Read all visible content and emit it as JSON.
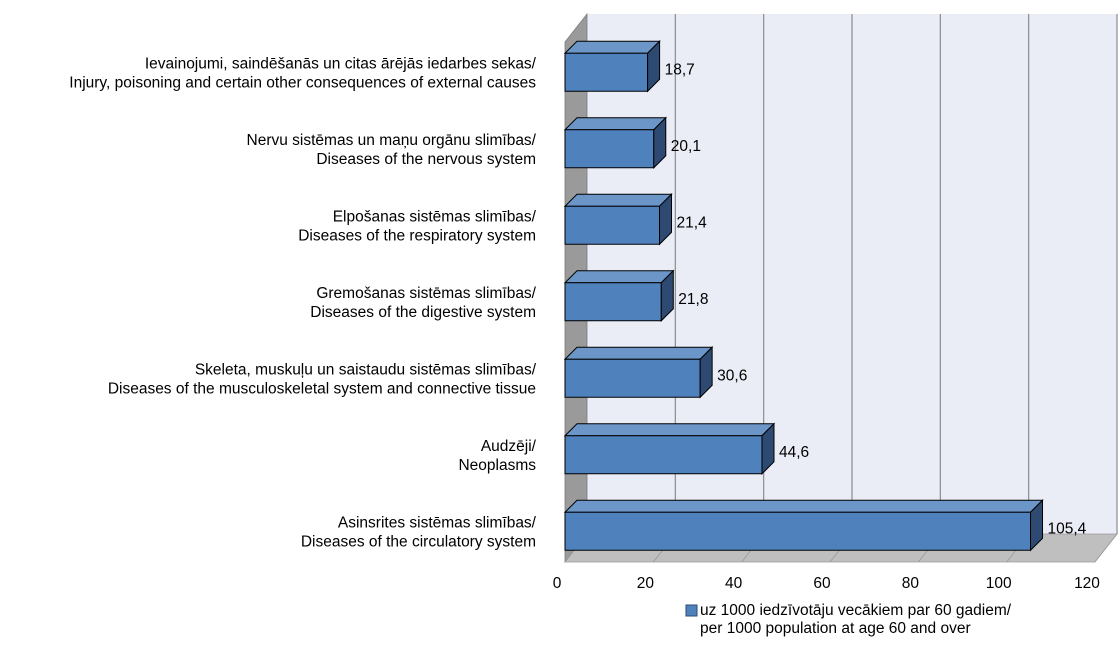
{
  "chart_data": {
    "type": "bar",
    "orientation": "horizontal",
    "style": "3d",
    "categories": [
      [
        "Ievainojumi, saindēšanās un citas ārējās iedarbes sekas/",
        "Injury, poisoning and certain other consequences of external causes"
      ],
      [
        "Nervu sistēmas un maņu orgānu slimības/",
        "Diseases of the nervous system"
      ],
      [
        "Elpošanas sistēmas slimības/",
        "Diseases of the respiratory system"
      ],
      [
        "Gremošanas sistēmas slimības/",
        "Diseases of the digestive system"
      ],
      [
        "Skeleta, muskuļu un saistaudu sistēmas slimības/",
        "Diseases of the musculoskeletal system and connective tissue"
      ],
      [
        "Audzēji/",
        "Neoplasms"
      ],
      [
        "Asinsrites sistēmas slimības/",
        "Diseases of the circulatory system"
      ]
    ],
    "series": [
      {
        "name": "uz 1000 iedzīvotāju vecākiem par 60 gadiem/ per 1000 population at age 60 and over",
        "values": [
          18.7,
          20.1,
          21.4,
          21.8,
          30.6,
          44.6,
          105.4
        ],
        "value_labels": [
          "18,7",
          "20,1",
          "21,4",
          "21,8",
          "30,6",
          "44,6",
          "105,4"
        ],
        "color": "#4f81bd"
      }
    ],
    "xlim": [
      0,
      120
    ],
    "xticks": [
      0,
      20,
      40,
      60,
      80,
      100,
      120
    ],
    "gridlines": true,
    "legend": {
      "position": "bottom",
      "lines": [
        "uz 1000 iedzīvotāju vecākiem par 60 gadiem/",
        "per 1000 population at age 60 and over"
      ]
    },
    "colors": {
      "bar_front": "#4f81bd",
      "bar_top": "#6c96c8",
      "bar_side": "#2e4a72",
      "bar_outline": "#000000",
      "wall": "#eaedf6",
      "side_wall": "#9a9a9a",
      "floor": "#bfbfbf",
      "grid": "#8c8c8c"
    }
  }
}
